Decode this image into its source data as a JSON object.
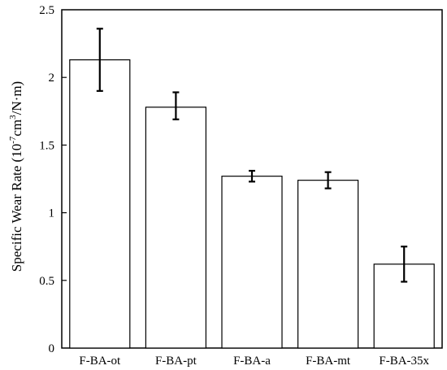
{
  "chart_data": {
    "type": "bar",
    "categories": [
      "F-BA-ot",
      "F-BA-pt",
      "F-BA-a",
      "F-BA-mt",
      "F-BA-35x"
    ],
    "values": [
      2.13,
      1.78,
      1.27,
      1.24,
      0.62
    ],
    "errors": [
      {
        "low": 1.9,
        "high": 2.36
      },
      {
        "low": 1.69,
        "high": 1.89
      },
      {
        "low": 1.23,
        "high": 1.31
      },
      {
        "low": 1.18,
        "high": 1.3
      },
      {
        "low": 0.49,
        "high": 0.75
      }
    ],
    "title": "",
    "xlabel": "",
    "ylabel": {
      "prefix": "Specific Wear Rate (10",
      "sup1": "-7",
      "mid": "cm",
      "sup2": "3",
      "suffix": "/N·m)"
    },
    "ylim": [
      0,
      2.5
    ],
    "yticks": [
      0,
      0.5,
      1,
      1.5,
      2,
      2.5
    ],
    "ytick_labels": [
      "0",
      "0.5",
      "1",
      "1.5",
      "2",
      "2.5"
    ],
    "grid": false,
    "legend": "none",
    "colors": {
      "bar_fill": "#ffffff",
      "bar_stroke": "#000000",
      "axis": "#000000"
    }
  }
}
